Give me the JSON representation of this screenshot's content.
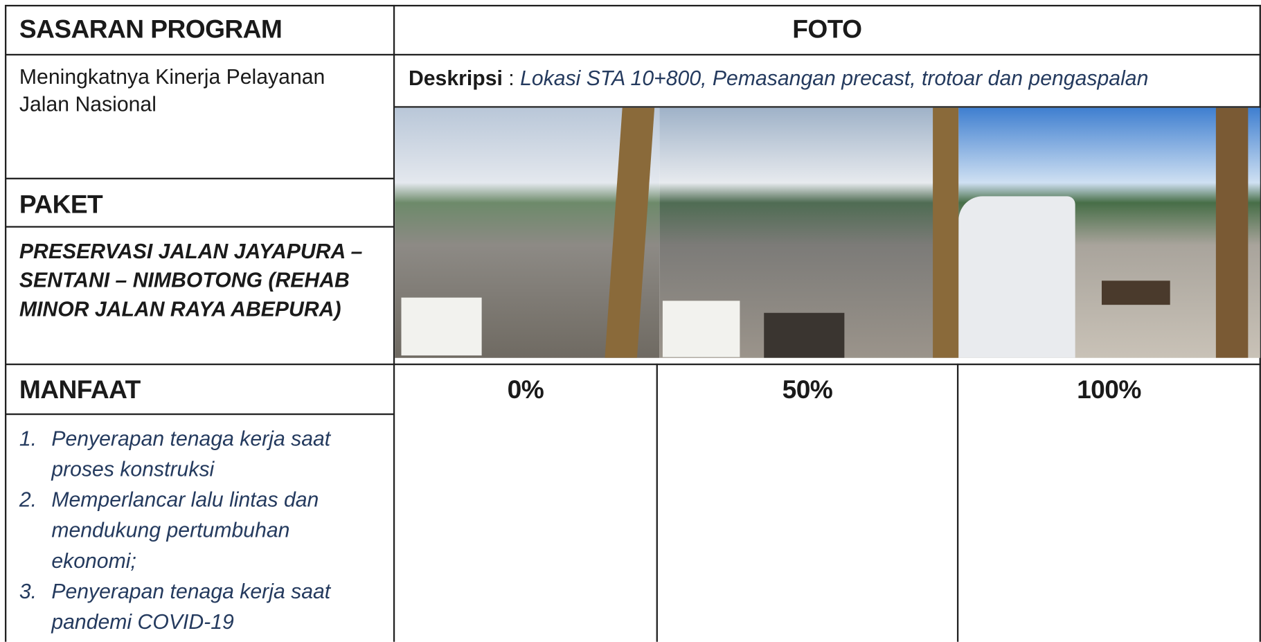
{
  "header": {
    "left": "SASARAN PROGRAM",
    "right": "FOTO"
  },
  "sasaran": "Meningkatnya Kinerja Pelayanan Jalan Nasional",
  "description": {
    "label": "Deskripsi",
    "separator": ":",
    "text": "Lokasi STA 10+800, Pemasangan precast, trotoar dan pengaspalan"
  },
  "paket": {
    "title": "PAKET",
    "text": "PRESERVASI JALAN JAYAPURA – SENTANI – NIMBOTONG (REHAB MINOR JALAN RAYA ABEPURA)"
  },
  "manfaat": {
    "title": "MANFAAT",
    "items": [
      {
        "number": "1.",
        "text": "Penyerapan tenaga kerja saat proses konstruksi"
      },
      {
        "number": "2.",
        "text": "Memperlancar lalu lintas dan mendukung pertumbuhan ekonomi;"
      },
      {
        "number": "3.",
        "text": "Penyerapan tenaga kerja saat pandemi COVID-19"
      }
    ]
  },
  "progress": [
    "0%",
    "50%",
    "100%"
  ]
}
